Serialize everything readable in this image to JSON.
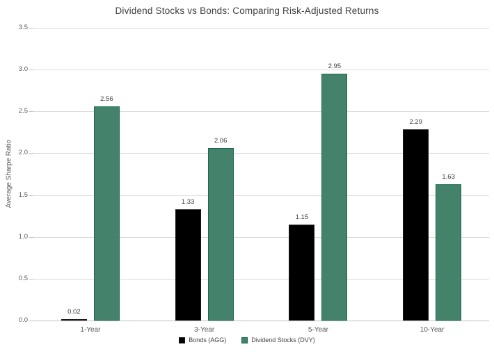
{
  "chart_data": {
    "type": "bar",
    "title": "Dividend Stocks vs Bonds: Comparing Risk-Adjusted Returns",
    "xlabel": "",
    "ylabel": "Average Sharpe Ratio",
    "categories": [
      "1-Year",
      "3-Year",
      "5-Year",
      "10-Year"
    ],
    "series": [
      {
        "name": "Bonds (AGG)",
        "color": "#000000",
        "border_color": "#1a1a1a",
        "values": [
          0.02,
          1.33,
          1.15,
          2.29
        ],
        "labels": [
          "0.02",
          "1.33",
          "1.15",
          "2.29"
        ]
      },
      {
        "name": "Dividend Stocks (DVY)",
        "color": "#44826c",
        "border_color": "#176b50",
        "values": [
          2.56,
          2.06,
          2.95,
          1.63
        ],
        "labels": [
          "2.56",
          "2.06",
          "2.95",
          "1.63"
        ]
      }
    ],
    "ylim": [
      0,
      3.5
    ],
    "ytick_step": 0.5,
    "yticks": [
      "0.0",
      "0.5",
      "1.0",
      "1.5",
      "2.0",
      "2.5",
      "3.0",
      "3.5"
    ],
    "grid": true,
    "legend_position": "bottom",
    "colors": {
      "gridline": "#d9d9d9",
      "axis_line": "#bfbfbf",
      "tick_mark": "#bfbfbf",
      "axis_text": "#595959",
      "title_text": "#3f3f3f",
      "value_label_text": "#404040"
    }
  }
}
